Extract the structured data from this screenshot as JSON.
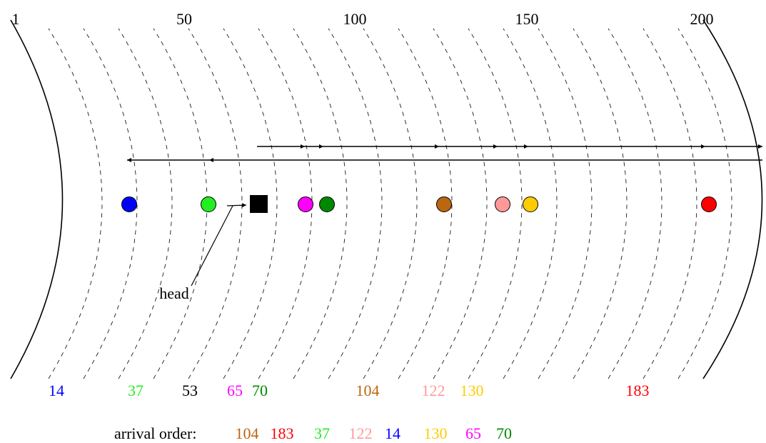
{
  "top_scale": [
    "1",
    "50",
    "100",
    "150",
    "200"
  ],
  "head_label": "head",
  "arrival_label": "arrival order:",
  "requests": [
    {
      "cyl": "14",
      "color": "#0000ff"
    },
    {
      "cyl": "37",
      "color": "#22ee22"
    },
    {
      "cyl": "65",
      "color": "#ff00ff"
    },
    {
      "cyl": "70",
      "color": "#008800"
    },
    {
      "cyl": "104",
      "color": "#bb6611"
    },
    {
      "cyl": "122",
      "color": "#ff9999"
    },
    {
      "cyl": "130",
      "color": "#ffcc00"
    },
    {
      "cyl": "183",
      "color": "#ff0000"
    }
  ],
  "head_cylinder": "53",
  "head_color": "#000000",
  "arrival_order": [
    {
      "cyl": "104",
      "color": "#bb6611"
    },
    {
      "cyl": "183",
      "color": "#ff0000"
    },
    {
      "cyl": "37",
      "color": "#22ee22"
    },
    {
      "cyl": "122",
      "color": "#ff9999"
    },
    {
      "cyl": "14",
      "color": "#0000ff"
    },
    {
      "cyl": "130",
      "color": "#ffcc00"
    },
    {
      "cyl": "65",
      "color": "#ff00ff"
    },
    {
      "cyl": "70",
      "color": "#008800"
    }
  ]
}
